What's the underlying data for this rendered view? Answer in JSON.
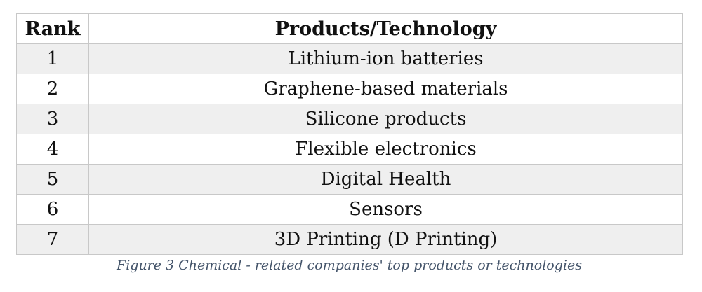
{
  "table": {
    "headers": {
      "rank": "Rank",
      "product": "Products/Technology"
    },
    "rows": [
      {
        "rank": "1",
        "product": "Lithium-ion batteries"
      },
      {
        "rank": "2",
        "product": "Graphene-based materials"
      },
      {
        "rank": "3",
        "product": "Silicone products"
      },
      {
        "rank": "4",
        "product": "Flexible electronics"
      },
      {
        "rank": "5",
        "product": "Digital Health"
      },
      {
        "rank": "6",
        "product": "Sensors"
      },
      {
        "rank": "7",
        "product": "3D Printing (D Printing)"
      }
    ],
    "colors": {
      "border": "#c8c8c8",
      "shaded_row": "#efefef",
      "plain_row": "#ffffff",
      "caption_text": "#44546a"
    }
  },
  "caption": "Figure 3 Chemical - related companies' top products or technologies"
}
